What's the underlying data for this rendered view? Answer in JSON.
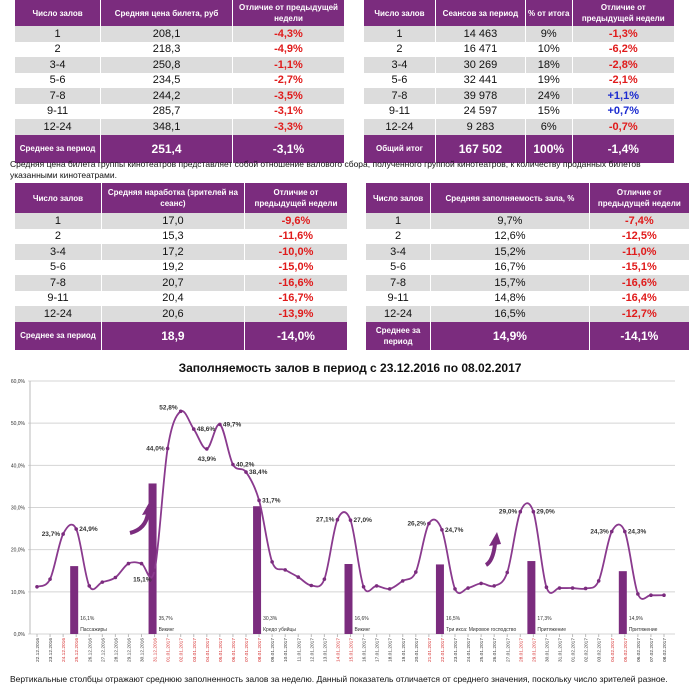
{
  "table_price": {
    "headers": [
      "Число залов",
      "Средняя цена билета, руб",
      "Отличие от предыдущей недели"
    ],
    "rows": [
      [
        "1",
        "208,1",
        "-4,3%"
      ],
      [
        "2",
        "218,3",
        "-4,9%"
      ],
      [
        "3-4",
        "250,8",
        "-1,1%"
      ],
      [
        "5-6",
        "234,5",
        "-2,7%"
      ],
      [
        "7-8",
        "244,2",
        "-3,5%"
      ],
      [
        "9-11",
        "285,7",
        "-3,1%"
      ],
      [
        "12-24",
        "348,1",
        "-3,3%"
      ]
    ],
    "footer": [
      "Среднее за период",
      "251,4",
      "-3,1%"
    ]
  },
  "table_sessions": {
    "headers": [
      "Число залов",
      "Сеансов за период",
      "% от итога",
      "Отличие от предыдущей недели"
    ],
    "rows": [
      [
        "1",
        "14 463",
        "9%",
        "-1,3%"
      ],
      [
        "2",
        "16 471",
        "10%",
        "-6,2%"
      ],
      [
        "3-4",
        "30 269",
        "18%",
        "-2,8%"
      ],
      [
        "5-6",
        "32 441",
        "19%",
        "-2,1%"
      ],
      [
        "7-8",
        "39 978",
        "24%",
        "+1,1%"
      ],
      [
        "9-11",
        "24 597",
        "15%",
        "+0,7%"
      ],
      [
        "12-24",
        "9 283",
        "6%",
        "-0,7%"
      ]
    ],
    "footer": [
      "Общий итог",
      "167 502",
      "100%",
      "-1,4%"
    ]
  },
  "note_price": "Средняя цена билета группы кинотеатров представляет собой отношение валового сбора, полученного группой кинотеатров, к количеству проданных билетов указанными кинотеатрами.",
  "table_viewers": {
    "headers": [
      "Число залов",
      "Средняя наработка (зрителей на сеанс)",
      "Отличие от предыдущей недели"
    ],
    "rows": [
      [
        "1",
        "17,0",
        "-9,6%"
      ],
      [
        "2",
        "15,3",
        "-11,6%"
      ],
      [
        "3-4",
        "17,2",
        "-10,0%"
      ],
      [
        "5-6",
        "19,2",
        "-15,0%"
      ],
      [
        "7-8",
        "20,7",
        "-16,6%"
      ],
      [
        "9-11",
        "20,4",
        "-16,7%"
      ],
      [
        "12-24",
        "20,6",
        "-13,9%"
      ]
    ],
    "footer": [
      "Среднее за период",
      "18,9",
      "-14,0%"
    ]
  },
  "table_occupancy": {
    "headers": [
      "Число залов",
      "Средняя заполняемость зала, %",
      "Отличие от предыдущей недели"
    ],
    "rows": [
      [
        "1",
        "9,7%",
        "-7,4%"
      ],
      [
        "2",
        "12,6%",
        "-12,5%"
      ],
      [
        "3-4",
        "15,2%",
        "-11,0%"
      ],
      [
        "5-6",
        "16,7%",
        "-15,1%"
      ],
      [
        "7-8",
        "15,7%",
        "-16,6%"
      ],
      [
        "9-11",
        "14,8%",
        "-16,4%"
      ],
      [
        "12-24",
        "16,5%",
        "-12,7%"
      ]
    ],
    "footer": [
      "Среднее за период",
      "14,9%",
      "-14,1%"
    ]
  },
  "colors": {
    "accent": "#7b2c7e",
    "negative": "#e01b1b",
    "positive": "#1b2bd0",
    "weekend_date": "#d42a2a"
  },
  "chart_data": {
    "type": "line",
    "title": "Заполняемость залов в период с 23.12.2016 по 08.02.2017",
    "ylim": [
      0,
      60
    ],
    "yticks": [
      "0,0%",
      "10,0%",
      "20,0%",
      "30,0%",
      "40,0%",
      "50,0%",
      "60,0%"
    ],
    "grid": true,
    "x": [
      "22.12.2016",
      "23.12.2016",
      "24.12.2016",
      "25.12.2016",
      "26.12.2016",
      "27.12.2016",
      "28.12.2016",
      "29.12.2016",
      "30.12.2016",
      "31.12.2016",
      "01.01.2017",
      "02.01.2017",
      "03.01.2017",
      "04.01.2017",
      "05.01.2017",
      "06.01.2017",
      "07.01.2017",
      "08.01.2017",
      "09.01.2017",
      "10.01.2017",
      "11.01.2017",
      "12.01.2017",
      "13.01.2017",
      "14.01.2017",
      "15.01.2017",
      "16.01.2017",
      "17.01.2017",
      "18.01.2017",
      "19.01.2017",
      "20.01.2017",
      "21.01.2017",
      "22.01.2017",
      "23.01.2017",
      "24.01.2017",
      "25.01.2017",
      "26.01.2017",
      "27.01.2017",
      "28.01.2017",
      "29.01.2017",
      "30.01.2017",
      "31.01.2017",
      "01.02.2017",
      "02.02.2017",
      "03.02.2017",
      "04.02.2017",
      "05.02.2017",
      "06.02.2017",
      "07.02.2017",
      "08.02.2017"
    ],
    "weekend": [
      2,
      3,
      9,
      10,
      11,
      12,
      13,
      14,
      15,
      16,
      17,
      23,
      24,
      30,
      31,
      37,
      38,
      44,
      45
    ],
    "line_values": [
      11.2,
      13.0,
      23.7,
      24.9,
      11.4,
      12.3,
      13.4,
      16.7,
      16.7,
      15.1,
      44.0,
      52.8,
      48.6,
      43.9,
      49.7,
      40.2,
      38.4,
      31.7,
      17.1,
      15.2,
      13.5,
      11.5,
      13.0,
      27.1,
      27.0,
      11.2,
      11.4,
      10.7,
      12.6,
      14.7,
      26.2,
      24.7,
      10.7,
      10.9,
      12.0,
      11.4,
      14.6,
      29.0,
      29.0,
      11.1,
      10.9,
      10.9,
      10.8,
      12.6,
      24.3,
      24.3,
      9.5,
      9.2,
      9.2
    ],
    "data_labels": {
      "2": "23,7%",
      "3": "24,9%",
      "9": "15,1%",
      "10": "44,0%",
      "11": "52,8%",
      "12": "48,6%",
      "13": "43,9%",
      "14": "49,7%",
      "15": "40,2%",
      "16": "38,4%",
      "17": "31,7%",
      "23": "27,1%",
      "24": "27,0%",
      "30": "26,2%",
      "31": "24,7%",
      "37": "29,0%",
      "38": "29,0%",
      "44": "24,3%",
      "45": "24,3%"
    },
    "bars": [
      {
        "date": "25.12.2016",
        "value": 16.1,
        "label": "16,1%",
        "film": "Пассажиры"
      },
      {
        "date": "31.12.2016",
        "value": 35.7,
        "label": "35,7%",
        "film": "Викинг"
      },
      {
        "date": "08.01.2017",
        "value": 30.3,
        "label": "30,3%",
        "film": "Кредо убийцы"
      },
      {
        "date": "15.01.2017",
        "value": 16.6,
        "label": "16,6%",
        "film": "Викинг"
      },
      {
        "date": "22.01.2017",
        "value": 16.5,
        "label": "16,5%",
        "film": "Три икса: Мировое господство"
      },
      {
        "date": "29.01.2017",
        "value": 17.3,
        "label": "17,3%",
        "film": "Притяжение"
      },
      {
        "date": "05.02.2017",
        "value": 14.9,
        "label": "14,9%",
        "film": "Притяжение"
      }
    ]
  },
  "note_chart": "Вертикальные столбцы отражают среднюю заполненность залов за неделю. Данный показатель отличается от среднего значения, поскольку число зрителей разное."
}
